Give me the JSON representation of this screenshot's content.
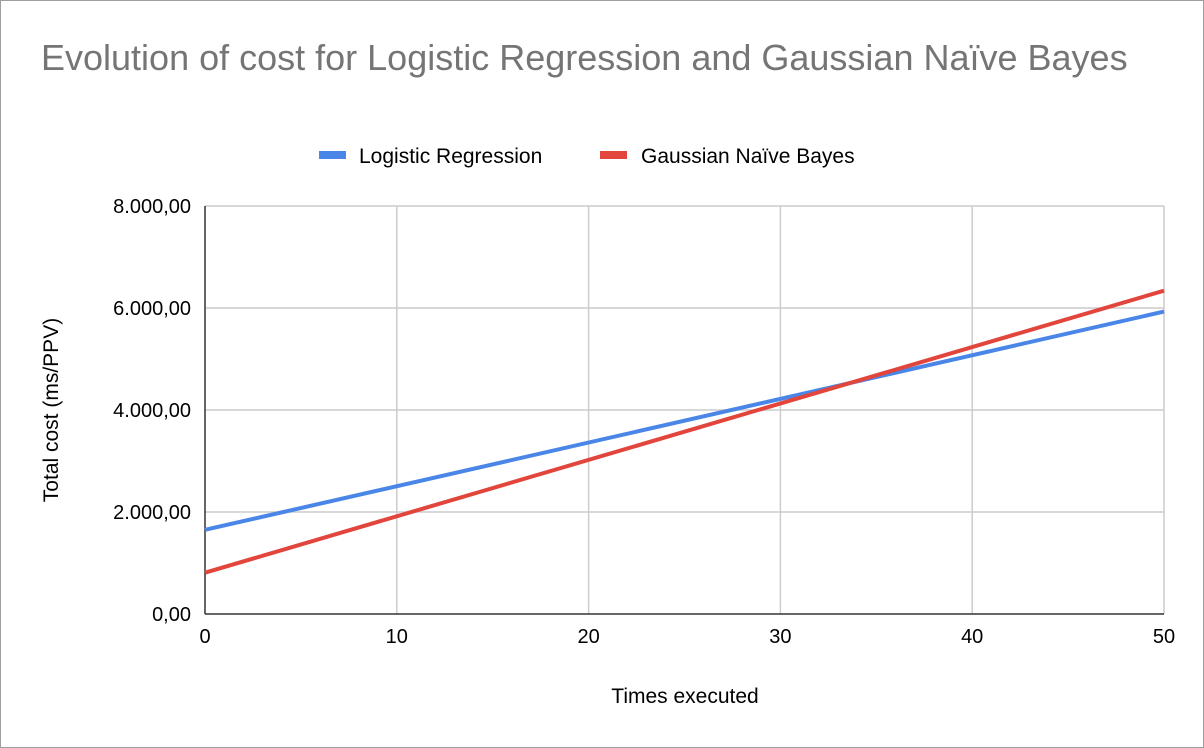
{
  "chart_data": {
    "type": "line",
    "title": "Evolution of cost for Logistic Regression and Gaussian Naïve Bayes",
    "xlabel": "Times executed",
    "ylabel": "Total cost (ms/PPV)",
    "xlim": [
      0,
      50
    ],
    "ylim": [
      0,
      8000
    ],
    "x_ticks": [
      0,
      10,
      20,
      30,
      40,
      50
    ],
    "x_tick_labels": [
      "0",
      "10",
      "20",
      "30",
      "40",
      "50"
    ],
    "y_ticks": [
      0,
      2000,
      4000,
      6000,
      8000
    ],
    "y_tick_labels": [
      "0,00",
      "2.000,00",
      "4.000,00",
      "6.000,00",
      "8.000,00"
    ],
    "grid": true,
    "legend_position": "top",
    "series": [
      {
        "name": "Logistic Regression",
        "color": "#4a86e8",
        "x": [
          0,
          50
        ],
        "y": [
          1650,
          5930
        ]
      },
      {
        "name": "Gaussian Naïve Bayes",
        "color": "#e2453c",
        "x": [
          0,
          50
        ],
        "y": [
          810,
          6340
        ]
      }
    ]
  }
}
